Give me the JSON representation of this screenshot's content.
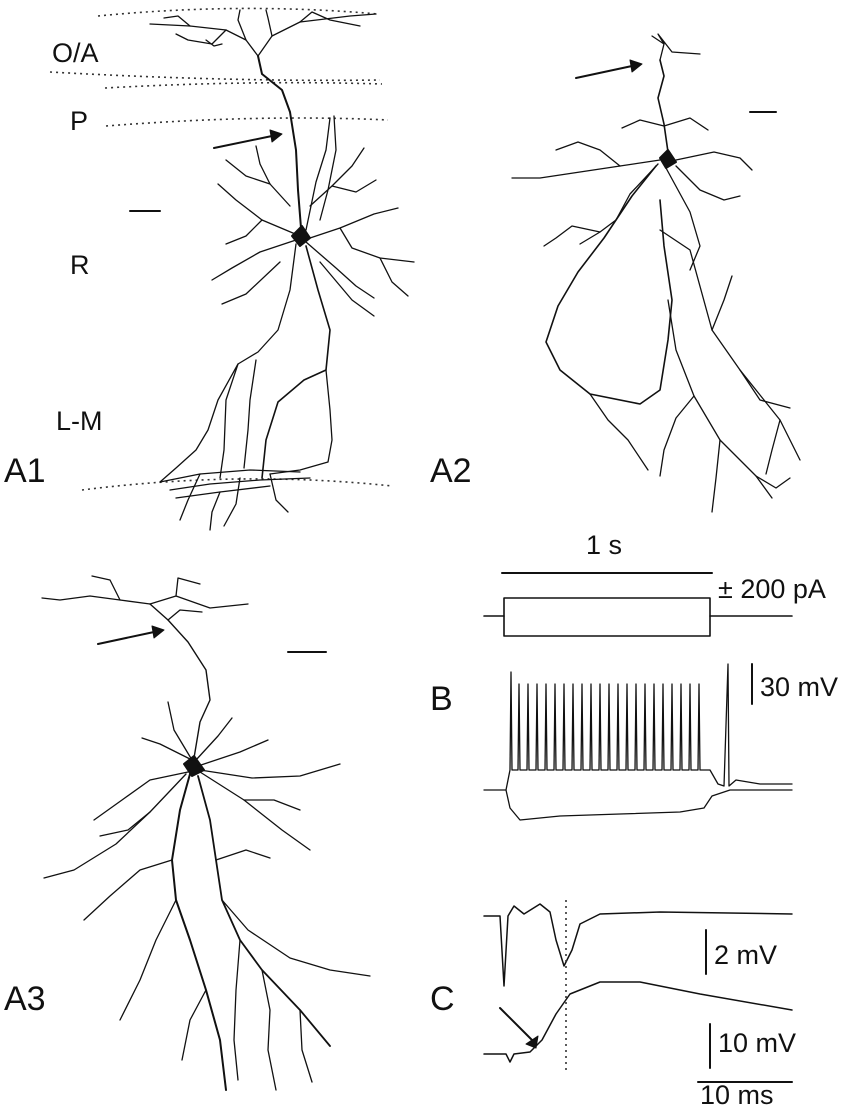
{
  "layers": {
    "oa": "O/A",
    "p": "P",
    "r": "R",
    "lm": "L-M"
  },
  "panels": {
    "a1": "A1",
    "a2": "A2",
    "a3": "A3",
    "b": "B",
    "c": "C"
  },
  "scalebars": {
    "time_b": "1 s",
    "current": "± 200 pA",
    "voltage_b": "30 mV",
    "voltage_c1": "2 mV",
    "voltage_c2": "10 mV",
    "time_c": "10 ms"
  },
  "colors": {
    "ink": "#111111",
    "background": "#ffffff"
  },
  "icons": [
    "arrow-icon"
  ]
}
